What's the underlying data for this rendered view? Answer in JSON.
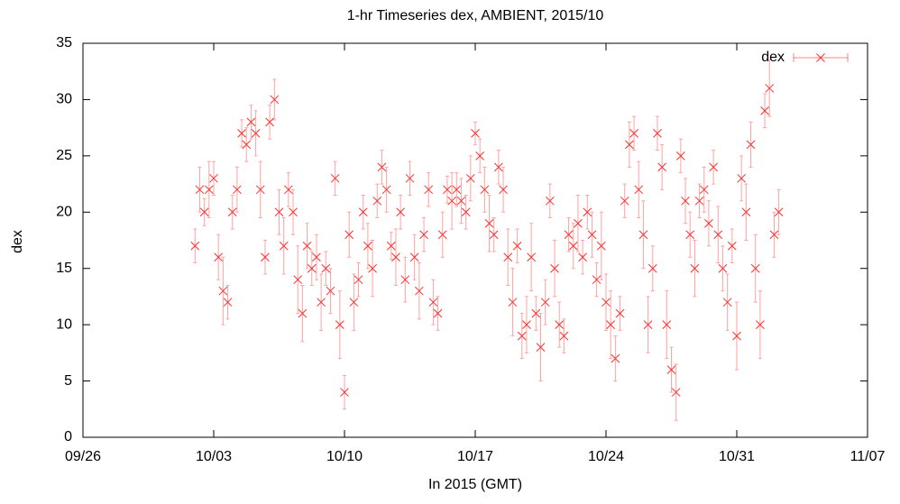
{
  "chart_data": {
    "type": "scatter",
    "title": "1-hr Timeseries dex, AMBIENT, 2015/10",
    "x_label": "In 2015 (GMT)",
    "y_label": "dex",
    "xlim": [
      "2015-09-26T00:00",
      "2015-11-07T00:00"
    ],
    "xticks": [
      {
        "value": "2015-09-26T00:00",
        "label": "09/26"
      },
      {
        "value": "2015-10-03T00:00",
        "label": "10/03"
      },
      {
        "value": "2015-10-10T00:00",
        "label": "10/10"
      },
      {
        "value": "2015-10-17T00:00",
        "label": "10/17"
      },
      {
        "value": "2015-10-24T00:00",
        "label": "10/24"
      },
      {
        "value": "2015-10-31T00:00",
        "label": "10/31"
      },
      {
        "value": "2015-11-07T00:00",
        "label": "11/07"
      }
    ],
    "ylim": [
      0,
      35
    ],
    "yticks": [
      0,
      5,
      10,
      15,
      20,
      25,
      30,
      35
    ],
    "grid": false,
    "legend": "top-right",
    "series": [
      {
        "name": "dex",
        "color": "#ff3030",
        "x": [
          "2015-10-02T00:00",
          "2015-10-02T06:00",
          "2015-10-02T12:00",
          "2015-10-02T18:00",
          "2015-10-03T00:00",
          "2015-10-03T06:00",
          "2015-10-03T12:00",
          "2015-10-03T18:00",
          "2015-10-04T00:00",
          "2015-10-04T06:00",
          "2015-10-04T12:00",
          "2015-10-04T18:00",
          "2015-10-05T00:00",
          "2015-10-05T06:00",
          "2015-10-05T12:00",
          "2015-10-05T18:00",
          "2015-10-06T00:00",
          "2015-10-06T06:00",
          "2015-10-06T12:00",
          "2015-10-06T18:00",
          "2015-10-07T00:00",
          "2015-10-07T06:00",
          "2015-10-07T12:00",
          "2015-10-07T18:00",
          "2015-10-08T00:00",
          "2015-10-08T06:00",
          "2015-10-08T12:00",
          "2015-10-08T18:00",
          "2015-10-09T00:00",
          "2015-10-09T06:00",
          "2015-10-09T12:00",
          "2015-10-09T18:00",
          "2015-10-10T00:00",
          "2015-10-10T06:00",
          "2015-10-10T12:00",
          "2015-10-10T18:00",
          "2015-10-11T00:00",
          "2015-10-11T06:00",
          "2015-10-11T12:00",
          "2015-10-11T18:00",
          "2015-10-12T00:00",
          "2015-10-12T06:00",
          "2015-10-12T12:00",
          "2015-10-12T18:00",
          "2015-10-13T00:00",
          "2015-10-13T06:00",
          "2015-10-13T12:00",
          "2015-10-13T18:00",
          "2015-10-14T00:00",
          "2015-10-14T06:00",
          "2015-10-14T12:00",
          "2015-10-14T18:00",
          "2015-10-15T00:00",
          "2015-10-15T06:00",
          "2015-10-15T12:00",
          "2015-10-15T18:00",
          "2015-10-16T00:00",
          "2015-10-16T06:00",
          "2015-10-16T12:00",
          "2015-10-16T18:00",
          "2015-10-17T00:00",
          "2015-10-17T06:00",
          "2015-10-17T12:00",
          "2015-10-17T18:00",
          "2015-10-18T00:00",
          "2015-10-18T06:00",
          "2015-10-18T12:00",
          "2015-10-18T18:00",
          "2015-10-19T00:00",
          "2015-10-19T06:00",
          "2015-10-19T12:00",
          "2015-10-19T18:00",
          "2015-10-20T00:00",
          "2015-10-20T06:00",
          "2015-10-20T12:00",
          "2015-10-20T18:00",
          "2015-10-21T00:00",
          "2015-10-21T06:00",
          "2015-10-21T12:00",
          "2015-10-21T18:00",
          "2015-10-22T00:00",
          "2015-10-22T06:00",
          "2015-10-22T12:00",
          "2015-10-22T18:00",
          "2015-10-23T00:00",
          "2015-10-23T06:00",
          "2015-10-23T12:00",
          "2015-10-23T18:00",
          "2015-10-24T00:00",
          "2015-10-24T06:00",
          "2015-10-24T12:00",
          "2015-10-24T18:00",
          "2015-10-25T00:00",
          "2015-10-25T06:00",
          "2015-10-25T12:00",
          "2015-10-25T18:00",
          "2015-10-26T00:00",
          "2015-10-26T06:00",
          "2015-10-26T12:00",
          "2015-10-26T18:00",
          "2015-10-27T00:00",
          "2015-10-27T06:00",
          "2015-10-27T12:00",
          "2015-10-27T18:00",
          "2015-10-28T00:00",
          "2015-10-28T06:00",
          "2015-10-28T12:00",
          "2015-10-28T18:00",
          "2015-10-29T00:00",
          "2015-10-29T06:00",
          "2015-10-29T12:00",
          "2015-10-29T18:00",
          "2015-10-30T00:00",
          "2015-10-30T06:00",
          "2015-10-30T12:00",
          "2015-10-30T18:00",
          "2015-10-31T00:00",
          "2015-10-31T06:00",
          "2015-10-31T12:00",
          "2015-10-31T18:00",
          "2015-11-01T00:00",
          "2015-11-01T06:00",
          "2015-11-01T12:00",
          "2015-11-01T18:00",
          "2015-11-02T00:00",
          "2015-11-02T06:00"
        ],
        "values": [
          17,
          22,
          20,
          22,
          23,
          16,
          13,
          12,
          20,
          22,
          27,
          26,
          28,
          27,
          22,
          16,
          28,
          30,
          20,
          17,
          22,
          20,
          14,
          11,
          17,
          15,
          16,
          12,
          15,
          13,
          23,
          10,
          4,
          18,
          12,
          14,
          20,
          17,
          15,
          21,
          24,
          22,
          17,
          16,
          20,
          14,
          23,
          16,
          13,
          18,
          22,
          12,
          11,
          18,
          22,
          21,
          22,
          21,
          20,
          23,
          27,
          25,
          22,
          19,
          18,
          24,
          22,
          16,
          12,
          17,
          9,
          10,
          16,
          11,
          8,
          12,
          21,
          15,
          10,
          9,
          18,
          17,
          19,
          16,
          20,
          18,
          14,
          17,
          12,
          10,
          7,
          11,
          21,
          26,
          27,
          22,
          18,
          10,
          15,
          27,
          24,
          10,
          6,
          4,
          25,
          21,
          18,
          15,
          21,
          22,
          19,
          24,
          18,
          15,
          12,
          17,
          9,
          23,
          20,
          26,
          15,
          10,
          29,
          31,
          18,
          20
        ],
        "errors": [
          1.5,
          2,
          1.2,
          2.5,
          1.5,
          2,
          3,
          1.5,
          1.5,
          2,
          1.2,
          1.5,
          1.5,
          2,
          2.5,
          1.5,
          1.5,
          1.8,
          2,
          2.5,
          1.5,
          2,
          3,
          2.5,
          2,
          1.5,
          2,
          2.5,
          1.5,
          2,
          1.5,
          3,
          1.5,
          2,
          2.5,
          1.5,
          1.5,
          2,
          2.5,
          1.5,
          1.5,
          2,
          1.2,
          2.5,
          1.5,
          2,
          1.5,
          2,
          2.5,
          1.5,
          1.5,
          2,
          1.5,
          2,
          1.2,
          2.5,
          1.5,
          2,
          1.5,
          2,
          1,
          1.5,
          2,
          2.5,
          1.5,
          1.5,
          2,
          2.5,
          3,
          1.5,
          2,
          2.5,
          3,
          1.5,
          3,
          2,
          1.5,
          2.5,
          2,
          1.5,
          1.5,
          2,
          2.5,
          1.5,
          1.5,
          2,
          1.5,
          3,
          2.5,
          3,
          2,
          1.5,
          1.5,
          2,
          1.5,
          2.5,
          3,
          2.5,
          2,
          1.5,
          2,
          3,
          2,
          2.5,
          1.5,
          2,
          2,
          2.5,
          1.5,
          2,
          2,
          1.5,
          2.5,
          2,
          2.5,
          1.5,
          3,
          2,
          2.5,
          2,
          3,
          3,
          1.5,
          2.5,
          2,
          2
        ]
      }
    ]
  }
}
